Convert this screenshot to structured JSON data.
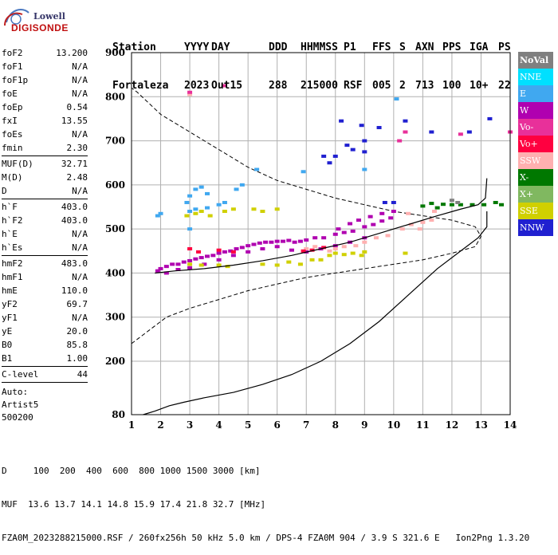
{
  "logo": {
    "line1": "Lowell",
    "line2": "DIGISONDE"
  },
  "header": {
    "row1": [
      "Station",
      "YYYY",
      "DAY",
      "DDD",
      "HHMMSS",
      "P1",
      "FFS",
      "S",
      "AXN",
      "PPS",
      "IGA",
      "PS"
    ],
    "row2": [
      "Fortaleza",
      "2023",
      "Out15",
      "288",
      "215000",
      "RSF",
      "005",
      "2",
      "713",
      "100",
      "10+",
      "22"
    ]
  },
  "params": [
    {
      "label": "foF2",
      "value": "13.200"
    },
    {
      "label": "foF1",
      "value": "N/A"
    },
    {
      "label": "foF1p",
      "value": "N/A"
    },
    {
      "label": "foE",
      "value": "N/A"
    },
    {
      "label": "foEp",
      "value": "0.54"
    },
    {
      "label": "fxI",
      "value": "13.55"
    },
    {
      "label": "foEs",
      "value": "N/A"
    },
    {
      "label": "fmin",
      "value": "2.30"
    },
    {
      "sep": true
    },
    {
      "label": "MUF(D)",
      "value": "32.71"
    },
    {
      "label": "M(D)",
      "value": "2.48"
    },
    {
      "label": "D",
      "value": "N/A"
    },
    {
      "sep": true
    },
    {
      "label": "h`F",
      "value": "403.0"
    },
    {
      "label": "h`F2",
      "value": "403.0"
    },
    {
      "label": "h`E",
      "value": "N/A"
    },
    {
      "label": "h`Es",
      "value": "N/A"
    },
    {
      "sep": true
    },
    {
      "label": "hmF2",
      "value": "483.0"
    },
    {
      "label": "hmF1",
      "value": "N/A"
    },
    {
      "label": "hmE",
      "value": "110.0"
    },
    {
      "label": "yF2",
      "value": "69.7"
    },
    {
      "label": "yF1",
      "value": "N/A"
    },
    {
      "label": "yE",
      "value": "20.0"
    },
    {
      "label": "B0",
      "value": "85.8"
    },
    {
      "label": "B1",
      "value": "1.00"
    },
    {
      "sep": true
    },
    {
      "label": "C-level",
      "value": "44"
    },
    {
      "sep": true
    }
  ],
  "auto": {
    "line1": "Auto:",
    "line2": "Artist5",
    "line3": "500200"
  },
  "footer": {
    "line1": "D     100  200  400  600  800 1000 1500 3000 [km]",
    "line2": "MUF  13.6 13.7 14.1 14.8 15.9 17.4 21.8 32.7 [MHz]",
    "line3": "FZA0M_2023288215000.RSF / 260fx256h 50 kHz 5.0 km / DPS-4 FZA0M 904 / 3.9 S 321.6 E   Ion2Png 1.3.20"
  },
  "legend": [
    {
      "label": "NoVal",
      "color": "#808080"
    },
    {
      "label": "NNE",
      "color": "#00e0ff"
    },
    {
      "label": "E",
      "color": "#40a8f0"
    },
    {
      "label": "W",
      "color": "#b000b0"
    },
    {
      "label": "Vo-",
      "color": "#e8309a"
    },
    {
      "label": "Vo+",
      "color": "#ff0040"
    },
    {
      "label": "SSW",
      "color": "#ffb0b0"
    },
    {
      "label": "X-",
      "color": "#007800"
    },
    {
      "label": "X+",
      "color": "#80b860"
    },
    {
      "label": "SSE",
      "color": "#d0d000"
    },
    {
      "label": "NNW",
      "color": "#2020d0"
    }
  ],
  "chart_data": {
    "type": "scatter",
    "xlabel": "",
    "ylabel": "",
    "xlim": [
      1,
      14
    ],
    "ylim": [
      80,
      900
    ],
    "xticks": [
      1,
      2,
      3,
      4,
      5,
      6,
      7,
      8,
      9,
      10,
      11,
      12,
      13,
      14
    ],
    "yticks": [
      80,
      200,
      300,
      400,
      500,
      600,
      700,
      800,
      900
    ],
    "grid": true,
    "profile_curve": {
      "x": [
        1.4,
        1.8,
        2.3,
        2.8,
        3.5,
        4.5,
        5.5,
        6.5,
        7.5,
        8.5,
        9.5,
        10.5,
        11.5,
        12.3,
        12.9,
        13.2,
        13.2
      ],
      "y": [
        80,
        88,
        100,
        108,
        118,
        130,
        148,
        170,
        200,
        240,
        290,
        350,
        410,
        450,
        480,
        505,
        540
      ]
    },
    "trace_line": {
      "x": [
        1.8,
        2.5,
        3.5,
        4.5,
        5.5,
        6.5,
        7.5,
        8.5,
        9.5,
        10.5,
        11.5,
        12.3,
        12.9,
        13.15,
        13.2
      ],
      "y": [
        400,
        405,
        410,
        418,
        428,
        440,
        455,
        470,
        490,
        510,
        530,
        545,
        555,
        570,
        615
      ]
    },
    "dashed_profile": {
      "x": [
        1,
        1.6,
        2.2,
        3.0,
        4.0,
        5.0,
        6.0,
        7.0,
        8.0,
        9.0,
        10.0,
        11.0,
        12.0,
        12.8,
        13.0,
        12.8,
        12.0,
        11.0,
        10.0,
        9.0,
        8.0,
        7.0,
        6.0,
        5.0,
        4.0,
        3.0,
        2.0,
        1.2,
        1.0
      ],
      "y": [
        240,
        270,
        300,
        320,
        340,
        360,
        375,
        390,
        400,
        410,
        420,
        430,
        445,
        460,
        483,
        505,
        520,
        530,
        540,
        555,
        570,
        590,
        610,
        640,
        680,
        720,
        760,
        810,
        820
      ]
    },
    "echo_series": [
      {
        "name": "W",
        "color": "#b000b0",
        "points": [
          [
            1.9,
            405
          ],
          [
            2.0,
            410
          ],
          [
            2.2,
            415
          ],
          [
            2.4,
            420
          ],
          [
            2.6,
            420
          ],
          [
            2.8,
            425
          ],
          [
            3.0,
            428
          ],
          [
            3.2,
            432
          ],
          [
            3.4,
            435
          ],
          [
            3.6,
            438
          ],
          [
            3.8,
            440
          ],
          [
            4.0,
            445
          ],
          [
            4.2,
            448
          ],
          [
            4.4,
            450
          ],
          [
            4.6,
            455
          ],
          [
            4.8,
            458
          ],
          [
            5.0,
            462
          ],
          [
            5.2,
            465
          ],
          [
            5.4,
            468
          ],
          [
            5.6,
            470
          ],
          [
            5.8,
            470
          ],
          [
            6.0,
            472
          ],
          [
            6.2,
            472
          ],
          [
            6.4,
            474
          ],
          [
            6.6,
            470
          ],
          [
            6.8,
            472
          ],
          [
            7.0,
            475
          ],
          [
            7.3,
            480
          ],
          [
            7.6,
            480
          ],
          [
            8.0,
            488
          ],
          [
            8.3,
            492
          ],
          [
            8.6,
            495
          ],
          [
            9.0,
            505
          ],
          [
            9.3,
            510
          ],
          [
            9.6,
            518
          ],
          [
            9.9,
            525
          ],
          [
            8.1,
            500
          ],
          [
            8.5,
            512
          ],
          [
            8.8,
            520
          ],
          [
            9.2,
            528
          ],
          [
            9.6,
            535
          ],
          [
            10.0,
            540
          ],
          [
            2.2,
            400
          ],
          [
            2.6,
            408
          ],
          [
            3.0,
            412
          ],
          [
            3.5,
            420
          ],
          [
            4.0,
            430
          ],
          [
            4.5,
            440
          ],
          [
            5.0,
            448
          ],
          [
            5.5,
            455
          ],
          [
            6.0,
            460
          ],
          [
            6.5,
            452
          ],
          [
            7.0,
            448
          ],
          [
            7.5,
            455
          ],
          [
            8.0,
            462
          ],
          [
            8.5,
            470
          ],
          [
            9.0,
            480
          ]
        ]
      },
      {
        "name": "E",
        "color": "#40a8f0",
        "points": [
          [
            1.9,
            530
          ],
          [
            2.0,
            535
          ],
          [
            2.9,
            560
          ],
          [
            3.0,
            575
          ],
          [
            3.2,
            590
          ],
          [
            3.4,
            595
          ],
          [
            3.6,
            580
          ],
          [
            3.0,
            540
          ],
          [
            3.2,
            545
          ],
          [
            3.6,
            548
          ],
          [
            4.0,
            555
          ],
          [
            4.2,
            560
          ],
          [
            4.6,
            590
          ],
          [
            4.8,
            600
          ],
          [
            5.3,
            635
          ],
          [
            3.0,
            500
          ],
          [
            10.1,
            795
          ],
          [
            9.0,
            635
          ],
          [
            6.9,
            630
          ]
        ]
      },
      {
        "name": "SSE",
        "color": "#d0d000",
        "points": [
          [
            2.9,
            530
          ],
          [
            3.2,
            535
          ],
          [
            3.4,
            540
          ],
          [
            3.7,
            530
          ],
          [
            4.2,
            540
          ],
          [
            4.5,
            545
          ],
          [
            5.2,
            545
          ],
          [
            5.5,
            540
          ],
          [
            6.0,
            545
          ],
          [
            3.0,
            420
          ],
          [
            3.4,
            418
          ],
          [
            4.0,
            418
          ],
          [
            4.3,
            415
          ],
          [
            5.5,
            420
          ],
          [
            6.0,
            418
          ],
          [
            6.4,
            425
          ],
          [
            7.5,
            430
          ],
          [
            7.8,
            440
          ],
          [
            8.0,
            445
          ],
          [
            8.3,
            442
          ],
          [
            8.6,
            445
          ],
          [
            8.9,
            440
          ],
          [
            9.0,
            448
          ],
          [
            10.4,
            445
          ],
          [
            6.8,
            420
          ],
          [
            7.2,
            430
          ]
        ]
      },
      {
        "name": "SSW",
        "color": "#ffb0b0",
        "points": [
          [
            7.8,
            450
          ],
          [
            8.0,
            455
          ],
          [
            8.3,
            460
          ],
          [
            8.7,
            462
          ],
          [
            9.0,
            470
          ],
          [
            9.4,
            480
          ],
          [
            9.8,
            485
          ],
          [
            10.3,
            500
          ],
          [
            10.6,
            510
          ],
          [
            11.0,
            515
          ],
          [
            11.3,
            520
          ],
          [
            10.9,
            500
          ],
          [
            7.0,
            455
          ],
          [
            7.3,
            460
          ],
          [
            3.0,
            805
          ],
          [
            10.5,
            535
          ],
          [
            11.4,
            540
          ]
        ]
      },
      {
        "name": "Vo-",
        "color": "#e8309a",
        "points": [
          [
            10.2,
            700
          ],
          [
            10.4,
            720
          ],
          [
            12.3,
            715
          ],
          [
            14.0,
            720
          ],
          [
            3.0,
            810
          ],
          [
            4.2,
            825
          ]
        ]
      },
      {
        "name": "Vo+",
        "color": "#ff0040",
        "points": [
          [
            6.9,
            450
          ],
          [
            7.2,
            452
          ],
          [
            7.6,
            458
          ],
          [
            3.0,
            455
          ],
          [
            3.3,
            448
          ],
          [
            4.0,
            452
          ],
          [
            4.5,
            448
          ]
        ]
      },
      {
        "name": "NNW",
        "color": "#2020d0",
        "points": [
          [
            7.6,
            665
          ],
          [
            7.8,
            650
          ],
          [
            8.0,
            665
          ],
          [
            8.4,
            690
          ],
          [
            8.6,
            680
          ],
          [
            9.0,
            675
          ],
          [
            9.0,
            700
          ],
          [
            8.9,
            735
          ],
          [
            9.5,
            730
          ],
          [
            10.0,
            560
          ],
          [
            10.4,
            745
          ],
          [
            12.6,
            720
          ],
          [
            13.3,
            750
          ],
          [
            11.3,
            720
          ],
          [
            8.2,
            745
          ],
          [
            9.7,
            560
          ]
        ]
      },
      {
        "name": "X-",
        "color": "#007800",
        "points": [
          [
            11.0,
            552
          ],
          [
            11.3,
            558
          ],
          [
            11.7,
            556
          ],
          [
            12.0,
            555
          ],
          [
            12.3,
            555
          ],
          [
            12.7,
            555
          ],
          [
            13.1,
            555
          ],
          [
            13.5,
            560
          ],
          [
            13.7,
            555
          ],
          [
            11.5,
            548
          ]
        ]
      },
      {
        "name": "NoVal",
        "color": "#808080",
        "points": [
          [
            12.0,
            565
          ],
          [
            12.2,
            560
          ]
        ]
      }
    ]
  }
}
